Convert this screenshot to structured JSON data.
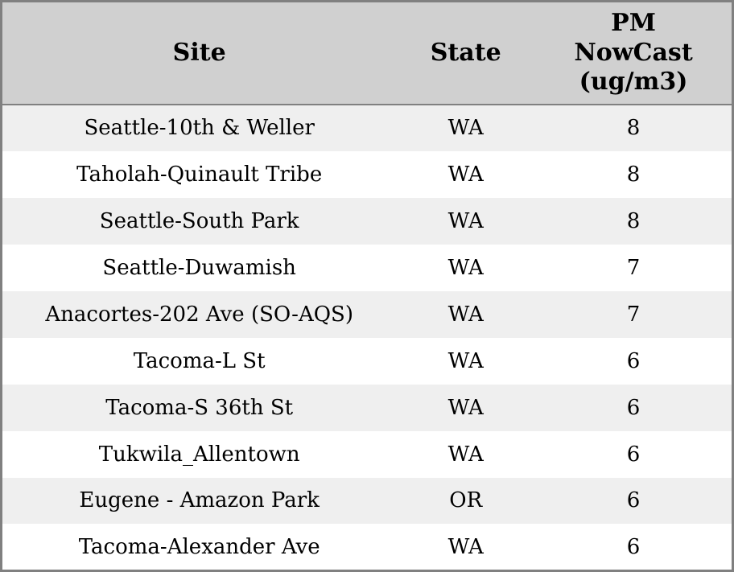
{
  "chart_data": {
    "type": "table",
    "title": "",
    "columns": [
      "Site",
      "State",
      "PM NowCast (ug/m3)"
    ],
    "rows": [
      {
        "site": "Seattle-10th & Weller",
        "state": "WA",
        "pm_nowcast": 8
      },
      {
        "site": "Taholah-Quinault Tribe",
        "state": "WA",
        "pm_nowcast": 8
      },
      {
        "site": "Seattle-South Park",
        "state": "WA",
        "pm_nowcast": 8
      },
      {
        "site": "Seattle-Duwamish",
        "state": "WA",
        "pm_nowcast": 7
      },
      {
        "site": "Anacortes-202 Ave (SO-AQS)",
        "state": "WA",
        "pm_nowcast": 7
      },
      {
        "site": "Tacoma-L St",
        "state": "WA",
        "pm_nowcast": 6
      },
      {
        "site": "Tacoma-S 36th St",
        "state": "WA",
        "pm_nowcast": 6
      },
      {
        "site": "Tukwila_Allentown",
        "state": "WA",
        "pm_nowcast": 6
      },
      {
        "site": "Eugene - Amazon Park",
        "state": "OR",
        "pm_nowcast": 6
      },
      {
        "site": "Tacoma-Alexander Ave",
        "state": "WA",
        "pm_nowcast": 6
      }
    ],
    "layout": {
      "grid": "off",
      "row_striping": "alternating",
      "alignment": "center"
    }
  },
  "colors": {
    "header_bg": "#d0d0d0",
    "row_odd_bg": "#efefef",
    "row_even_bg": "#ffffff",
    "border_color": "#808080",
    "text_color": "#000000"
  }
}
